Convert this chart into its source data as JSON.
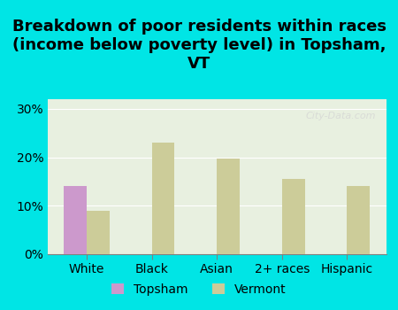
{
  "title": "Breakdown of poor residents within races\n(income below poverty level) in Topsham,\nVT",
  "categories": [
    "White",
    "Black",
    "Asian",
    "2+ races",
    "Hispanic"
  ],
  "topsham_values": [
    14.0,
    0,
    0,
    0,
    0
  ],
  "vermont_values": [
    9.0,
    23.0,
    19.8,
    15.5,
    14.0
  ],
  "topsham_color": "#cc99cc",
  "vermont_color": "#cccc99",
  "background_outer": "#00e5e5",
  "background_inner": "#e8f0e0",
  "yticks": [
    0,
    10,
    20,
    30
  ],
  "ylim": [
    0,
    32
  ],
  "bar_width": 0.35,
  "title_fontsize": 13,
  "watermark": "City-Data.com"
}
